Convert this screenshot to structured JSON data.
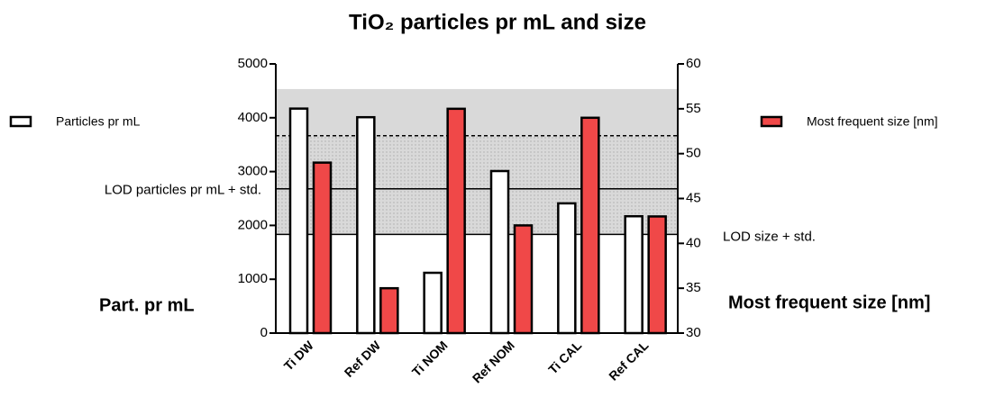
{
  "chart_data": {
    "type": "bar",
    "title": "TiO₂ particles pr mL and size",
    "y_label": "Part. pr mL",
    "y2_label": "Most frequent size [nm]",
    "categories": [
      "Ti DW",
      "Ref DW",
      "Ti NOM",
      "Ref NOM",
      "Ti CAL",
      "Ref CAL"
    ],
    "series": [
      {
        "name": "Particles pr mL",
        "color": "#ffffff",
        "axis": "y",
        "values": [
          4170,
          4010,
          1120,
          3010,
          2410,
          2170
        ]
      },
      {
        "name": "Most frequent size [nm]",
        "color": "#f04848",
        "axis": "y2",
        "values": [
          49,
          35,
          55,
          42,
          54,
          43
        ]
      }
    ],
    "ylim": [
      0,
      5000
    ],
    "yticks": [
      0,
      1000,
      2000,
      3000,
      4000,
      5000
    ],
    "y2lim": [
      30,
      60
    ],
    "y2ticks": [
      30,
      35,
      40,
      45,
      50,
      55,
      60
    ],
    "bands": [
      {
        "axis": "y2",
        "from": 41,
        "to": 57.2,
        "color": "#d9d9d9"
      },
      {
        "axis": "y2",
        "from": 41,
        "to": 52,
        "pattern": "dots"
      }
    ],
    "reference_lines": [
      {
        "label": "LOD particles pr mL + std.",
        "value": 2680,
        "axis": "y",
        "style": "solid"
      },
      {
        "label": "LOD size + std.",
        "value": 41,
        "axis": "y2",
        "style": "solid"
      },
      {
        "value": 52,
        "axis": "y2",
        "style": "dashed"
      }
    ]
  }
}
